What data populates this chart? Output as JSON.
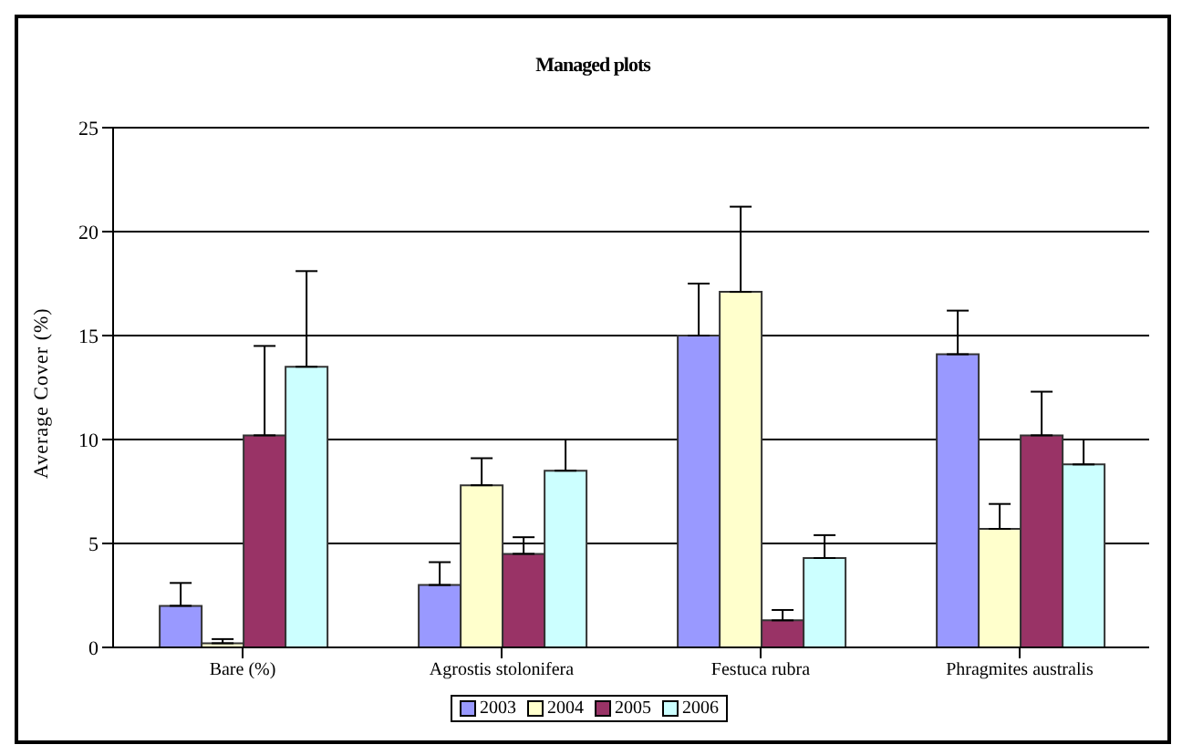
{
  "chart_data": {
    "type": "bar",
    "title": "Managed plots",
    "ylabel": "Average Cover (%)",
    "categories": [
      "Bare (%)",
      "Agrostis stolonifera",
      "Festuca rubra",
      "Phragmites australis"
    ],
    "series": [
      {
        "name": "2003",
        "color": "#9999ff",
        "values": [
          2.0,
          3.0,
          15.0,
          14.1
        ],
        "errors": [
          [
            2.0,
            3.1
          ],
          [
            3.0,
            4.1
          ],
          [
            15.0,
            17.5
          ],
          [
            14.1,
            16.2
          ]
        ]
      },
      {
        "name": "2004",
        "color": "#ffffcc",
        "values": [
          0.2,
          7.8,
          17.1,
          5.7
        ],
        "errors": [
          [
            0.2,
            0.4
          ],
          [
            7.8,
            9.1
          ],
          [
            17.1,
            21.2
          ],
          [
            5.7,
            6.9
          ]
        ]
      },
      {
        "name": "2005",
        "color": "#993366",
        "values": [
          10.2,
          4.5,
          1.3,
          10.2
        ],
        "errors": [
          [
            10.2,
            14.5
          ],
          [
            4.5,
            5.3
          ],
          [
            1.3,
            1.8
          ],
          [
            10.2,
            12.3
          ]
        ]
      },
      {
        "name": "2006",
        "color": "#ccffff",
        "values": [
          13.5,
          8.5,
          4.3,
          8.8
        ],
        "errors": [
          [
            13.5,
            18.1
          ],
          [
            8.5,
            10.0
          ],
          [
            4.3,
            5.4
          ],
          [
            8.8,
            10.0
          ]
        ]
      }
    ],
    "ylim": [
      0,
      25
    ],
    "yticks": [
      0,
      5,
      10,
      15,
      20,
      25
    ],
    "grid": "y",
    "legend": "bottom"
  }
}
